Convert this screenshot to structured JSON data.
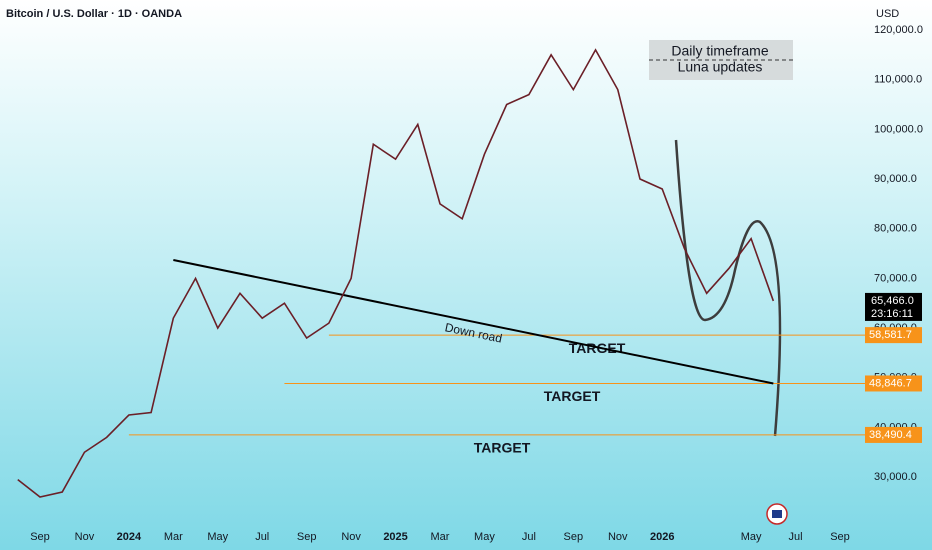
{
  "chart_data": {
    "type": "line",
    "title": "Bitcoin / U.S. Dollar · 1D · OANDA",
    "currency": "USD",
    "annotation": [
      "Daily timeframe",
      "Luna updates"
    ],
    "x": [
      "2023-08",
      "2023-09",
      "2023-10",
      "2023-11",
      "2023-12",
      "2024-01",
      "2024-02",
      "2024-03",
      "2024-04",
      "2024-05",
      "2024-06",
      "2024-07",
      "2024-08",
      "2024-09",
      "2024-10",
      "2024-11",
      "2024-12",
      "2025-01",
      "2025-02",
      "2025-03",
      "2025-04",
      "2025-05",
      "2025-06",
      "2025-07",
      "2025-08",
      "2025-09",
      "2025-10",
      "2025-11",
      "2025-12",
      "2026-01",
      "2026-02",
      "2026-03",
      "2026-04",
      "2026-05",
      "2026-06"
    ],
    "series": [
      {
        "name": "BTCUSD",
        "color": "#6b1f27",
        "values": [
          29500,
          26000,
          27000,
          35000,
          38000,
          42500,
          43000,
          62000,
          70000,
          60000,
          67000,
          62000,
          65000,
          58000,
          61000,
          70000,
          97000,
          94000,
          101000,
          85000,
          82000,
          95000,
          105000,
          107000,
          115000,
          108000,
          116000,
          108000,
          90000,
          88000,
          76000,
          67000,
          72000,
          78000,
          65466
        ]
      }
    ],
    "ylim": [
      20360,
      126040
    ],
    "yticks": [
      {
        "value": 30000,
        "label": "30,000.0"
      },
      {
        "value": 40000,
        "label": "40,000.0"
      },
      {
        "value": 50000,
        "label": "50,000.0"
      },
      {
        "value": 60000,
        "label": "60,000.0"
      },
      {
        "value": 70000,
        "label": "70,000.0"
      },
      {
        "value": 80000,
        "label": "80,000.0"
      },
      {
        "value": 90000,
        "label": "90,000.0"
      },
      {
        "value": 100000,
        "label": "100,000.0"
      },
      {
        "value": 110000,
        "label": "110,000.0"
      },
      {
        "value": 120000,
        "label": "120,000.0"
      }
    ],
    "xticks": [
      {
        "value": "2023-09",
        "label": "Sep"
      },
      {
        "value": "2023-11",
        "label": "Nov"
      },
      {
        "value": "2024-01",
        "label": "2024"
      },
      {
        "value": "2024-03",
        "label": "Mar"
      },
      {
        "value": "2024-05",
        "label": "May"
      },
      {
        "value": "2024-07",
        "label": "Jul"
      },
      {
        "value": "2024-09",
        "label": "Sep"
      },
      {
        "value": "2024-11",
        "label": "Nov"
      },
      {
        "value": "2025-01",
        "label": "2025"
      },
      {
        "value": "2025-03",
        "label": "Mar"
      },
      {
        "value": "2025-05",
        "label": "May"
      },
      {
        "value": "2025-07",
        "label": "Jul"
      },
      {
        "value": "2025-09",
        "label": "Sep"
      },
      {
        "value": "2025-11",
        "label": "Nov"
      },
      {
        "value": "2026-01",
        "label": "2026"
      },
      {
        "value": "2026-05",
        "label": "May"
      },
      {
        "value": "2026-07",
        "label": "Jul"
      },
      {
        "value": "2026-09",
        "label": "Sep"
      }
    ],
    "grid": false,
    "levels": {
      "labels": [
        "TARGET",
        "TARGET",
        "TARGET"
      ],
      "start": [
        "2024-10",
        "2024-08",
        "2024-01"
      ],
      "values": [
        58581.7,
        48846.7,
        38490.4
      ],
      "value_labels": [
        "58,581.7",
        "48,846.7",
        "38,490.4"
      ],
      "color": "#f7931a"
    },
    "trendline": {
      "label": "Down road",
      "x": [
        "2024-03",
        "2026-06"
      ],
      "values": [
        73700,
        48846.7
      ],
      "color": "#000000"
    },
    "last": {
      "value": 65466,
      "label": "65,466.0",
      "countdown": "23:16:11"
    }
  }
}
